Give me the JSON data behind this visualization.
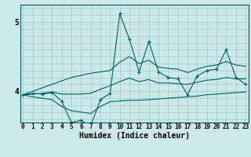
{
  "xlabel": "Humidex (Indice chaleur)",
  "bg_color": "#cce8e8",
  "line_color": "#005f5f",
  "grid_color": "#99cccc",
  "x": [
    0,
    1,
    2,
    3,
    4,
    5,
    6,
    7,
    8,
    9,
    10,
    11,
    12,
    13,
    14,
    15,
    16,
    17,
    18,
    19,
    20,
    21,
    22,
    23
  ],
  "y_upper": [
    3.95,
    4.0,
    4.05,
    4.1,
    4.15,
    4.2,
    4.23,
    4.26,
    4.28,
    4.3,
    4.42,
    4.5,
    4.4,
    4.45,
    4.35,
    4.33,
    4.32,
    4.27,
    4.32,
    4.36,
    4.38,
    4.43,
    4.38,
    4.36
  ],
  "y_lower": [
    3.95,
    3.92,
    3.9,
    3.88,
    3.78,
    3.72,
    3.7,
    3.68,
    3.78,
    3.85,
    3.86,
    3.87,
    3.87,
    3.88,
    3.89,
    3.9,
    3.91,
    3.92,
    3.93,
    3.95,
    3.96,
    3.97,
    3.98,
    3.99
  ],
  "y_mid": [
    3.95,
    3.96,
    3.97,
    3.99,
    3.96,
    3.96,
    3.96,
    3.97,
    4.03,
    4.08,
    4.14,
    4.19,
    4.14,
    4.17,
    4.12,
    4.12,
    4.11,
    4.1,
    4.13,
    4.16,
    4.17,
    4.2,
    4.18,
    4.18
  ],
  "y_peak": [
    3.95,
    3.97,
    3.96,
    3.98,
    3.86,
    3.55,
    3.58,
    3.5,
    3.88,
    3.97,
    5.12,
    4.75,
    4.28,
    4.72,
    4.28,
    4.2,
    4.18,
    3.95,
    4.22,
    4.3,
    4.32,
    4.6,
    4.2,
    4.1
  ],
  "yticks": [
    4,
    5
  ],
  "xticks": [
    0,
    1,
    2,
    3,
    4,
    5,
    6,
    7,
    8,
    9,
    10,
    11,
    12,
    13,
    14,
    15,
    16,
    17,
    18,
    19,
    20,
    21,
    22,
    23
  ],
  "xlim": [
    -0.3,
    23.3
  ],
  "ylim": [
    3.55,
    5.25
  ]
}
